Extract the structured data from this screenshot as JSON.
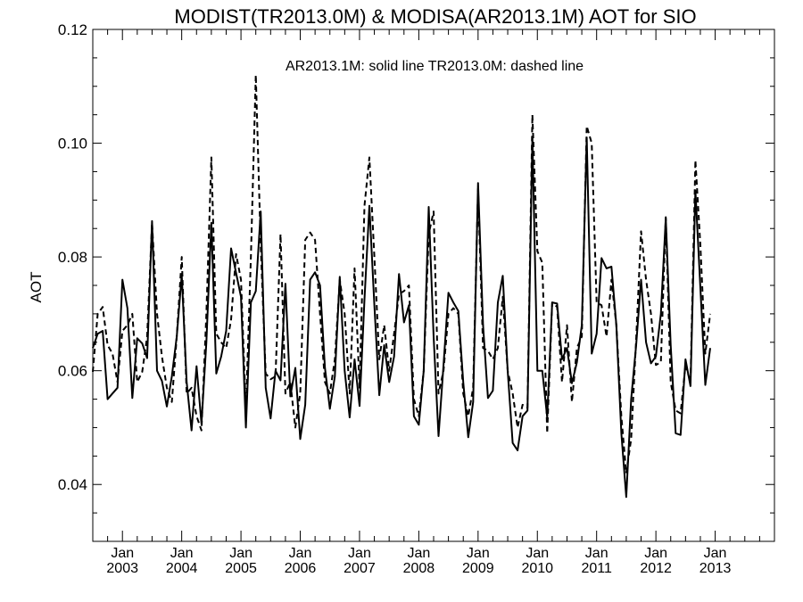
{
  "chart_data": {
    "type": "line",
    "title": "MODIST(TR2013.0M) & MODISA(AR2013.1M)  AOT for SIO",
    "annotation": "AR2013.1M: solid line   TR2013.0M: dashed line",
    "ylabel": "AOT",
    "xlabel": "",
    "xlim": [
      "2002-07",
      "2014-01"
    ],
    "ylim": [
      0.03,
      0.12
    ],
    "y_ticks": [
      "0.04",
      "0.06",
      "0.08",
      "0.10",
      "0.12"
    ],
    "x_ticks": [
      {
        "date": "2003-01",
        "line1": "Jan",
        "line2": "2003"
      },
      {
        "date": "2004-01",
        "line1": "Jan",
        "line2": "2004"
      },
      {
        "date": "2005-01",
        "line1": "Jan",
        "line2": "2005"
      },
      {
        "date": "2006-01",
        "line1": "Jan",
        "line2": "2006"
      },
      {
        "date": "2007-01",
        "line1": "Jan",
        "line2": "2007"
      },
      {
        "date": "2008-01",
        "line1": "Jan",
        "line2": "2008"
      },
      {
        "date": "2009-01",
        "line1": "Jan",
        "line2": "2009"
      },
      {
        "date": "2010-01",
        "line1": "Jan",
        "line2": "2010"
      },
      {
        "date": "2011-01",
        "line1": "Jan",
        "line2": "2011"
      },
      {
        "date": "2012-01",
        "line1": "Jan",
        "line2": "2012"
      },
      {
        "date": "2013-01",
        "line1": "Jan",
        "line2": "2013"
      }
    ],
    "start_date": "2002-07",
    "series": [
      {
        "name": "AR2013.1M",
        "style": "solid",
        "color": "#000000",
        "values": [
          0.064,
          0.0665,
          0.067,
          0.055,
          0.056,
          0.057,
          0.076,
          0.071,
          0.0552,
          0.0657,
          0.0648,
          0.0622,
          0.0863,
          0.06,
          0.0582,
          0.0537,
          0.059,
          0.066,
          0.0768,
          0.058,
          0.0495,
          0.0608,
          0.0507,
          0.065,
          0.086,
          0.0595,
          0.0625,
          0.067,
          0.0815,
          0.0772,
          0.073,
          0.05,
          0.072,
          0.074,
          0.088,
          0.057,
          0.0516,
          0.06,
          0.0583,
          0.0753,
          0.0555,
          0.0605,
          0.048,
          0.054,
          0.076,
          0.0773,
          0.075,
          0.0605,
          0.0533,
          0.059,
          0.0765,
          0.06,
          0.0518,
          0.062,
          0.0538,
          0.0725,
          0.089,
          0.0715,
          0.0557,
          0.0645,
          0.058,
          0.0625,
          0.077,
          0.0685,
          0.0715,
          0.052,
          0.0505,
          0.06,
          0.0888,
          0.066,
          0.0485,
          0.061,
          0.0737,
          0.072,
          0.0705,
          0.058,
          0.0483,
          0.0545,
          0.093,
          0.068,
          0.0552,
          0.0565,
          0.072,
          0.0767,
          0.06,
          0.0473,
          0.046,
          0.052,
          0.053,
          0.101,
          0.06,
          0.06,
          0.0518,
          0.072,
          0.0718,
          0.062,
          0.064,
          0.0578,
          0.0615,
          0.068,
          0.101,
          0.063,
          0.0665,
          0.0798,
          0.078,
          0.0783,
          0.068,
          0.049,
          0.0378,
          0.055,
          0.0645,
          0.076,
          0.065,
          0.0613,
          0.0625,
          0.07,
          0.0868,
          0.0645,
          0.049,
          0.0487,
          0.062,
          0.0573,
          0.0917,
          0.0745,
          0.0575,
          0.064
        ]
      },
      {
        "name": "TR2013.0M",
        "style": "dashed",
        "color": "#000000",
        "values": [
          0.0598,
          0.07,
          0.0712,
          0.0645,
          0.063,
          0.058,
          0.067,
          0.068,
          0.07,
          0.058,
          0.0598,
          0.066,
          0.086,
          0.07,
          0.0625,
          0.057,
          0.0545,
          0.066,
          0.08,
          0.056,
          0.057,
          0.052,
          0.0495,
          0.07,
          0.0975,
          0.0665,
          0.065,
          0.064,
          0.069,
          0.0805,
          0.076,
          0.053,
          0.08,
          0.112,
          0.082,
          0.0595,
          0.0585,
          0.059,
          0.084,
          0.056,
          0.058,
          0.05,
          0.056,
          0.083,
          0.0843,
          0.083,
          0.07,
          0.058,
          0.056,
          0.062,
          0.076,
          0.07,
          0.056,
          0.078,
          0.057,
          0.089,
          0.0975,
          0.08,
          0.062,
          0.068,
          0.06,
          0.0665,
          0.0735,
          0.074,
          0.075,
          0.055,
          0.052,
          0.06,
          0.084,
          0.088,
          0.056,
          0.06,
          0.07,
          0.071,
          0.07,
          0.056,
          0.052,
          0.057,
          0.092,
          0.064,
          0.0635,
          0.062,
          0.064,
          0.073,
          0.06,
          0.056,
          0.05,
          0.054,
          0.0535,
          0.105,
          0.081,
          0.079,
          0.049,
          0.072,
          0.0712,
          0.058,
          0.068,
          0.0545,
          0.064,
          0.066,
          0.103,
          0.1,
          0.072,
          0.0715,
          0.066,
          0.076,
          0.068,
          0.052,
          0.042,
          0.048,
          0.0655,
          0.0845,
          0.076,
          0.07,
          0.061,
          0.0615,
          0.087,
          0.058,
          0.053,
          0.0525,
          0.061,
          0.058,
          0.097,
          0.082,
          0.063,
          0.07
        ]
      }
    ]
  }
}
